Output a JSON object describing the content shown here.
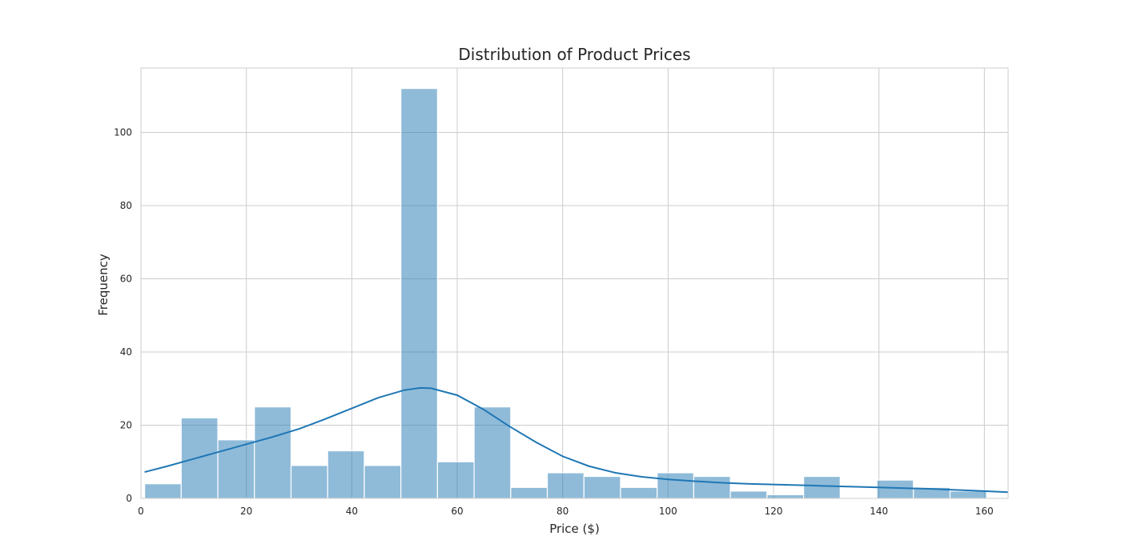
{
  "chart_data": {
    "type": "bar",
    "title": "Distribution of Product Prices",
    "xlabel": "Price ($)",
    "ylabel": "Frequency",
    "xlim": [
      0,
      164.5
    ],
    "ylim": [
      0,
      117.6
    ],
    "xticks": [
      0,
      20,
      40,
      60,
      80,
      100,
      120,
      140,
      160
    ],
    "yticks": [
      0,
      20,
      40,
      60,
      80,
      100
    ],
    "grid": true,
    "bin_edges": [
      0.7,
      7.64,
      14.59,
      21.53,
      28.48,
      35.42,
      42.37,
      49.31,
      56.26,
      63.2,
      70.15,
      77.09,
      84.04,
      90.98,
      97.93,
      104.87,
      111.82,
      118.76,
      125.71,
      132.65,
      139.6,
      146.54,
      153.49,
      160.43
    ],
    "values": [
      4,
      22,
      16,
      25,
      9,
      13,
      9,
      112,
      10,
      25,
      3,
      7,
      6,
      3,
      7,
      6,
      2,
      1,
      6,
      0,
      5,
      3,
      2
    ],
    "kde": {
      "x": [
        0.7,
        5,
        10,
        15,
        20,
        25,
        30,
        35,
        40,
        45,
        50,
        53,
        55,
        60,
        65,
        70,
        75,
        80,
        85,
        90,
        95,
        100,
        105,
        110,
        115,
        120,
        125,
        130,
        135,
        140,
        145,
        150,
        155,
        160,
        164.5
      ],
      "y": [
        7.2,
        8.8,
        10.8,
        12.8,
        14.8,
        16.8,
        19.0,
        21.7,
        24.6,
        27.5,
        29.6,
        30.2,
        30.1,
        28.2,
        24.3,
        19.6,
        15.3,
        11.5,
        8.8,
        7.0,
        5.9,
        5.2,
        4.7,
        4.3,
        4.0,
        3.8,
        3.6,
        3.4,
        3.2,
        3.0,
        2.8,
        2.6,
        2.3,
        2.0,
        1.7
      ]
    },
    "colors": {
      "bar": "#1f77b4",
      "kde": "#1f77b4"
    }
  }
}
